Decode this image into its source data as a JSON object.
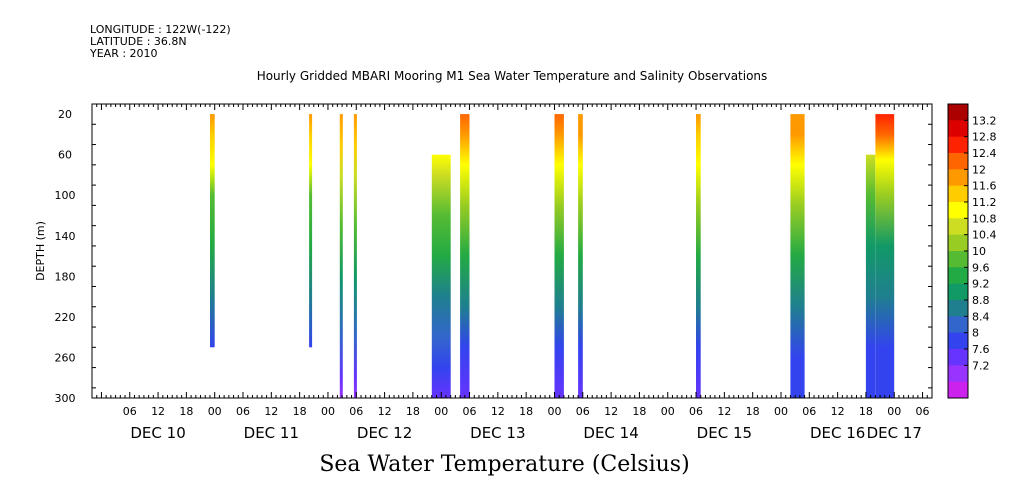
{
  "header": {
    "longitude": "LONGITUDE : 122W(-122)",
    "latitude": "LATITUDE : 36.8N",
    "year": "YEAR : 2010"
  },
  "chart_data": {
    "type": "heatmap",
    "title": "Hourly Gridded MBARI Mooring M1 Sea Water Temperature and Salinity Observations",
    "footer_title": "Sea Water Temperature (Celsius)",
    "ylabel": "DEPTH (m)",
    "xlabel": "",
    "x_start": "2010-12-09T22:00",
    "x_end": "2010-12-17T08:00",
    "ylim": [
      300,
      10
    ],
    "y_ticks": [
      20,
      60,
      100,
      140,
      180,
      220,
      260,
      300
    ],
    "x_hour_ticks": [
      {
        "time": "2010-12-10T06:00",
        "label": "06"
      },
      {
        "time": "2010-12-10T12:00",
        "label": "12"
      },
      {
        "time": "2010-12-10T18:00",
        "label": "18"
      },
      {
        "time": "2010-12-11T00:00",
        "label": "00"
      },
      {
        "time": "2010-12-11T06:00",
        "label": "06"
      },
      {
        "time": "2010-12-11T12:00",
        "label": "12"
      },
      {
        "time": "2010-12-11T18:00",
        "label": "18"
      },
      {
        "time": "2010-12-12T00:00",
        "label": "00"
      },
      {
        "time": "2010-12-12T06:00",
        "label": "06"
      },
      {
        "time": "2010-12-12T12:00",
        "label": "12"
      },
      {
        "time": "2010-12-12T18:00",
        "label": "18"
      },
      {
        "time": "2010-12-13T00:00",
        "label": "00"
      },
      {
        "time": "2010-12-13T06:00",
        "label": "06"
      },
      {
        "time": "2010-12-13T12:00",
        "label": "12"
      },
      {
        "time": "2010-12-13T18:00",
        "label": "18"
      },
      {
        "time": "2010-12-14T00:00",
        "label": "00"
      },
      {
        "time": "2010-12-14T06:00",
        "label": "06"
      },
      {
        "time": "2010-12-14T12:00",
        "label": "12"
      },
      {
        "time": "2010-12-14T18:00",
        "label": "18"
      },
      {
        "time": "2010-12-15T00:00",
        "label": "00"
      },
      {
        "time": "2010-12-15T06:00",
        "label": "06"
      },
      {
        "time": "2010-12-15T12:00",
        "label": "12"
      },
      {
        "time": "2010-12-15T18:00",
        "label": "18"
      },
      {
        "time": "2010-12-16T00:00",
        "label": "00"
      },
      {
        "time": "2010-12-16T06:00",
        "label": "06"
      },
      {
        "time": "2010-12-16T12:00",
        "label": "12"
      },
      {
        "time": "2010-12-16T18:00",
        "label": "18"
      },
      {
        "time": "2010-12-17T00:00",
        "label": "00"
      },
      {
        "time": "2010-12-17T06:00",
        "label": "06"
      }
    ],
    "x_day_labels": [
      {
        "time": "2010-12-10T12:00",
        "label": "DEC 10"
      },
      {
        "time": "2010-12-11T12:00",
        "label": "DEC 11"
      },
      {
        "time": "2010-12-12T12:00",
        "label": "DEC 12"
      },
      {
        "time": "2010-12-13T12:00",
        "label": "DEC 13"
      },
      {
        "time": "2010-12-14T12:00",
        "label": "DEC 14"
      },
      {
        "time": "2010-12-15T12:00",
        "label": "DEC 15"
      },
      {
        "time": "2010-12-16T12:00",
        "label": "DEC 16"
      },
      {
        "time": "2010-12-17T00:00",
        "label": "DEC 17"
      }
    ],
    "colorbar": {
      "levels": [
        7.2,
        7.6,
        8,
        8.4,
        8.8,
        9.2,
        9.6,
        10,
        10.4,
        10.8,
        11.2,
        11.6,
        12,
        12.4,
        12.8,
        13.2
      ],
      "labels": [
        "13.2",
        "12.8",
        "12.4",
        "12",
        "11.6",
        "11.2",
        "10.8",
        "10.4",
        "10",
        "9.6",
        "9.2",
        "8.8",
        "8.4",
        "8",
        "7.6",
        "7.2"
      ],
      "colors": [
        "#cc22ee",
        "#9933ff",
        "#6633ff",
        "#3344ee",
        "#3366cc",
        "#1f7f8f",
        "#119966",
        "#22aa44",
        "#55bb33",
        "#99cc22",
        "#ccdd22",
        "#ffff00",
        "#ffcc00",
        "#ff9900",
        "#ff6600",
        "#ff2200",
        "#dd0000",
        "#aa0000"
      ]
    },
    "columns": [
      {
        "start": "2010-12-10T23:00",
        "end": "2010-12-11T00:00",
        "top_depth": 20,
        "bottom_depth": 250,
        "profile": [
          [
            20,
            12.1
          ],
          [
            40,
            11.9
          ],
          [
            70,
            11.3
          ],
          [
            100,
            10.3
          ],
          [
            150,
            9.6
          ],
          [
            200,
            9.0
          ],
          [
            250,
            8.3
          ]
        ]
      },
      {
        "start": "2010-12-11T20:00",
        "end": "2010-12-11T20:30",
        "top_depth": 20,
        "bottom_depth": 250,
        "profile": [
          [
            20,
            12.1
          ],
          [
            40,
            11.9
          ],
          [
            70,
            11.3
          ],
          [
            100,
            10.3
          ],
          [
            150,
            9.6
          ],
          [
            200,
            9.0
          ],
          [
            250,
            8.3
          ]
        ]
      },
      {
        "start": "2010-12-12T02:30",
        "end": "2010-12-12T03:00",
        "top_depth": 20,
        "bottom_depth": 300,
        "profile": [
          [
            20,
            12.1
          ],
          [
            50,
            11.8
          ],
          [
            80,
            11.0
          ],
          [
            130,
            10.0
          ],
          [
            180,
            9.2
          ],
          [
            240,
            8.4
          ],
          [
            280,
            7.9
          ],
          [
            300,
            7.5
          ]
        ]
      },
      {
        "start": "2010-12-12T05:30",
        "end": "2010-12-12T06:00",
        "top_depth": 20,
        "bottom_depth": 300,
        "profile": [
          [
            20,
            12.1
          ],
          [
            50,
            11.8
          ],
          [
            80,
            11.0
          ],
          [
            130,
            10.0
          ],
          [
            180,
            9.2
          ],
          [
            240,
            8.4
          ],
          [
            280,
            7.9
          ],
          [
            300,
            7.5
          ]
        ]
      },
      {
        "start": "2010-12-12T22:00",
        "end": "2010-12-13T02:00",
        "top_depth": 60,
        "bottom_depth": 300,
        "profile": [
          [
            60,
            11.5
          ],
          [
            80,
            10.9
          ],
          [
            120,
            10.3
          ],
          [
            160,
            9.6
          ],
          [
            200,
            9.0
          ],
          [
            240,
            8.4
          ],
          [
            270,
            8.0
          ],
          [
            300,
            7.6
          ]
        ]
      },
      {
        "start": "2010-12-13T04:00",
        "end": "2010-12-13T06:00",
        "top_depth": 20,
        "bottom_depth": 300,
        "profile": [
          [
            20,
            12.7
          ],
          [
            40,
            12.3
          ],
          [
            70,
            11.4
          ],
          [
            110,
            10.4
          ],
          [
            160,
            9.6
          ],
          [
            210,
            8.9
          ],
          [
            250,
            8.3
          ],
          [
            300,
            7.7
          ]
        ]
      },
      {
        "start": "2010-12-14T00:00",
        "end": "2010-12-14T02:00",
        "top_depth": 20,
        "bottom_depth": 300,
        "profile": [
          [
            20,
            12.5
          ],
          [
            40,
            12.1
          ],
          [
            70,
            11.3
          ],
          [
            110,
            10.4
          ],
          [
            160,
            9.6
          ],
          [
            210,
            8.9
          ],
          [
            250,
            8.3
          ],
          [
            300,
            7.8
          ]
        ]
      },
      {
        "start": "2010-12-14T05:00",
        "end": "2010-12-14T06:00",
        "top_depth": 20,
        "bottom_depth": 300,
        "profile": [
          [
            20,
            12.3
          ],
          [
            40,
            12.0
          ],
          [
            70,
            11.2
          ],
          [
            110,
            10.4
          ],
          [
            160,
            9.6
          ],
          [
            210,
            8.9
          ],
          [
            250,
            8.3
          ],
          [
            300,
            7.8
          ]
        ]
      },
      {
        "start": "2010-12-15T06:00",
        "end": "2010-12-15T07:00",
        "top_depth": 20,
        "bottom_depth": 300,
        "profile": [
          [
            20,
            12.2
          ],
          [
            40,
            11.9
          ],
          [
            70,
            11.2
          ],
          [
            110,
            10.4
          ],
          [
            160,
            9.6
          ],
          [
            210,
            8.9
          ],
          [
            250,
            8.3
          ],
          [
            300,
            7.9
          ]
        ]
      },
      {
        "start": "2010-12-16T02:00",
        "end": "2010-12-16T05:00",
        "top_depth": 20,
        "bottom_depth": 300,
        "profile": [
          [
            20,
            12.3
          ],
          [
            40,
            12.0
          ],
          [
            70,
            11.2
          ],
          [
            110,
            10.4
          ],
          [
            160,
            9.6
          ],
          [
            210,
            9.0
          ],
          [
            260,
            8.3
          ],
          [
            300,
            8.0
          ]
        ]
      },
      {
        "start": "2010-12-16T18:00",
        "end": "2010-12-16T20:00",
        "top_depth": 60,
        "bottom_depth": 300,
        "profile": [
          [
            60,
            10.8
          ],
          [
            100,
            10.1
          ],
          [
            150,
            9.4
          ],
          [
            200,
            8.8
          ],
          [
            250,
            8.2
          ],
          [
            300,
            8.0
          ]
        ]
      },
      {
        "start": "2010-12-16T20:00",
        "end": "2010-12-16T23:59",
        "top_depth": 20,
        "bottom_depth": 300,
        "profile": [
          [
            20,
            12.9
          ],
          [
            40,
            12.4
          ],
          [
            65,
            11.4
          ],
          [
            100,
            10.4
          ],
          [
            150,
            9.5
          ],
          [
            200,
            8.8
          ],
          [
            250,
            8.2
          ],
          [
            300,
            8.0
          ]
        ]
      }
    ]
  }
}
